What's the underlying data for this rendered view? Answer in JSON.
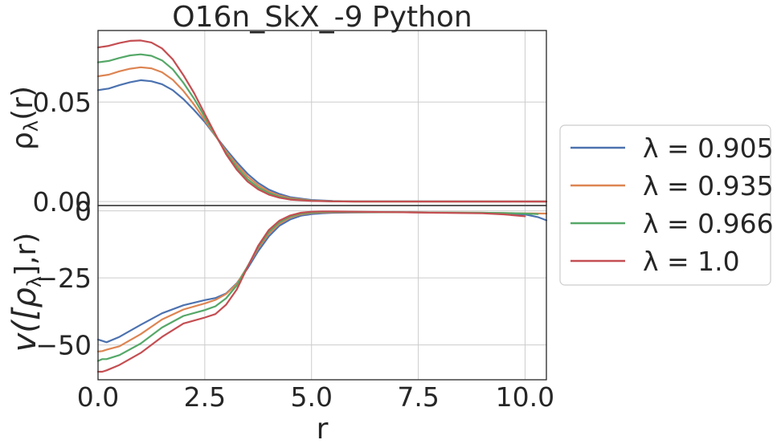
{
  "title": "O16n_SkX_-9 Python",
  "colors": {
    "axis": "#262626",
    "grid": "#cccccc",
    "series": [
      "#4c72b0",
      "#dd8452",
      "#55a868",
      "#c44e52"
    ]
  },
  "chart_data": [
    {
      "type": "line",
      "panel": "top",
      "ylabel_tex": "ρλ(r)",
      "ylabel_main": "ρ",
      "ylabel_sub": "λ",
      "ylabel_tail": "(r)",
      "xlim": [
        0,
        10.5
      ],
      "ylim": [
        -0.002,
        0.086
      ],
      "yticks": [
        0.0,
        0.05
      ],
      "ytick_labels": [
        "0.00",
        "0.05"
      ],
      "grid": true,
      "series": [
        {
          "name": "λ = 0.905",
          "x": [
            0,
            0.25,
            0.5,
            0.75,
            1.0,
            1.25,
            1.5,
            1.75,
            2.0,
            2.25,
            2.5,
            2.75,
            3.0,
            3.25,
            3.5,
            3.75,
            4.0,
            4.25,
            4.5,
            5.0,
            5.5,
            6.0,
            10.5
          ],
          "y": [
            0.056,
            0.0568,
            0.0585,
            0.06,
            0.061,
            0.0605,
            0.059,
            0.056,
            0.0515,
            0.046,
            0.04,
            0.033,
            0.0262,
            0.0198,
            0.014,
            0.0094,
            0.006,
            0.0038,
            0.0022,
            0.0008,
            0.0003,
            0.0001,
            0.0
          ]
        },
        {
          "name": "λ = 0.935",
          "x": [
            0,
            0.25,
            0.5,
            0.75,
            1.0,
            1.25,
            1.5,
            1.75,
            2.0,
            2.25,
            2.5,
            2.75,
            3.0,
            3.25,
            3.5,
            3.75,
            4.0,
            4.25,
            4.5,
            5.0,
            5.5,
            6.0,
            10.5
          ],
          "y": [
            0.063,
            0.0638,
            0.0655,
            0.0668,
            0.0675,
            0.067,
            0.065,
            0.0612,
            0.0556,
            0.0487,
            0.041,
            0.033,
            0.0253,
            0.0185,
            0.0126,
            0.0082,
            0.005,
            0.003,
            0.0017,
            0.0005,
            0.0002,
            0.0,
            0.0
          ]
        },
        {
          "name": "λ = 0.966",
          "x": [
            0,
            0.25,
            0.5,
            0.75,
            1.0,
            1.25,
            1.5,
            1.75,
            2.0,
            2.25,
            2.5,
            2.75,
            3.0,
            3.25,
            3.5,
            3.75,
            4.0,
            4.25,
            4.5,
            5.0,
            5.5,
            6.0,
            10.5
          ],
          "y": [
            0.07,
            0.0707,
            0.0722,
            0.0735,
            0.074,
            0.0733,
            0.071,
            0.0665,
            0.0597,
            0.0517,
            0.0425,
            0.0333,
            0.0245,
            0.0172,
            0.0113,
            0.0071,
            0.0042,
            0.0024,
            0.0013,
            0.0004,
            0.0001,
            0.0,
            0.0
          ]
        },
        {
          "name": "λ = 1.0",
          "x": [
            0,
            0.25,
            0.5,
            0.75,
            1.0,
            1.25,
            1.5,
            1.75,
            2.0,
            2.25,
            2.5,
            2.75,
            3.0,
            3.25,
            3.5,
            3.75,
            4.0,
            4.25,
            4.5,
            5.0,
            5.5,
            6.0,
            10.5
          ],
          "y": [
            0.0775,
            0.0783,
            0.0797,
            0.0808,
            0.081,
            0.08,
            0.077,
            0.0715,
            0.0635,
            0.0545,
            0.044,
            0.0338,
            0.0238,
            0.016,
            0.0101,
            0.0061,
            0.0035,
            0.0019,
            0.001,
            0.0003,
            0.0001,
            0.0,
            0.0
          ]
        }
      ]
    },
    {
      "type": "line",
      "panel": "bottom",
      "ylabel_main": "v([ρ",
      "ylabel_sub": "λ",
      "ylabel_tail": "],r)",
      "xlabel": "r",
      "xlim": [
        0,
        10.5
      ],
      "ylim": [
        -63,
        2
      ],
      "yticks": [
        0,
        -25,
        -50
      ],
      "ytick_labels": [
        "0",
        "−25",
        "−50"
      ],
      "xticks": [
        0,
        2.5,
        5.0,
        7.5,
        10.0
      ],
      "xtick_labels": [
        "0.0",
        "2.5",
        "5.0",
        "7.5",
        "10.0"
      ],
      "grid": true,
      "series": [
        {
          "name": "λ = 0.905",
          "x": [
            0.0,
            0.1,
            0.2,
            0.5,
            1.0,
            1.5,
            2.0,
            2.5,
            2.75,
            3.0,
            3.25,
            3.5,
            3.75,
            4.0,
            4.25,
            4.5,
            4.75,
            5.0,
            5.25,
            5.5,
            6.0,
            7.0,
            8.0,
            9.0,
            9.5,
            10.0,
            10.3,
            10.5
          ],
          "y": [
            -48,
            -48.5,
            -49,
            -47,
            -42.5,
            -38.2,
            -35.2,
            -33.3,
            -32.5,
            -30.8,
            -27,
            -21.5,
            -15,
            -9.5,
            -5.5,
            -3.2,
            -1.8,
            -1.2,
            -0.9,
            -0.7,
            -0.6,
            -0.5,
            -0.6,
            -0.8,
            -1.1,
            -1.3,
            -2.3,
            -3.5
          ]
        },
        {
          "name": "λ = 0.935",
          "x": [
            0.0,
            0.1,
            0.2,
            0.5,
            1.0,
            1.5,
            2.0,
            2.5,
            2.75,
            3.0,
            3.25,
            3.5,
            3.75,
            4.0,
            4.25,
            4.5,
            4.75,
            5.0,
            5.25,
            5.5,
            6.0,
            7.0,
            8.0,
            9.0,
            9.5,
            10.0,
            10.5
          ],
          "y": [
            -52.5,
            -52.3,
            -51.8,
            -50.5,
            -46,
            -40.5,
            -36.8,
            -34.5,
            -33.2,
            -31,
            -27.2,
            -20.8,
            -14,
            -8.5,
            -4.7,
            -2.5,
            -1.3,
            -0.8,
            -0.6,
            -0.5,
            -0.5,
            -0.5,
            -0.6,
            -0.7,
            -0.8,
            -0.9,
            -1.0
          ]
        },
        {
          "name": "λ = 0.966",
          "x": [
            0.0,
            0.1,
            0.2,
            0.5,
            1.0,
            1.5,
            2.0,
            2.5,
            2.75,
            3.0,
            3.25,
            3.5,
            3.75,
            4.0,
            4.25,
            4.5,
            4.75,
            5.0,
            5.25,
            5.5,
            6.0,
            7.0,
            8.0,
            9.0,
            9.5,
            10.0,
            10.3
          ],
          "y": [
            -56,
            -55.3,
            -55.3,
            -53.8,
            -49.5,
            -43.5,
            -39.2,
            -37,
            -35.6,
            -32.6,
            -27.8,
            -20.8,
            -13.5,
            -7.8,
            -4.2,
            -2.1,
            -1.0,
            -0.6,
            -0.4,
            -0.3,
            -0.4,
            -0.5,
            -0.6,
            -0.7,
            -0.8,
            -1.0,
            -1.2
          ]
        },
        {
          "name": "λ = 1.0",
          "x": [
            0.0,
            0.1,
            0.2,
            0.5,
            1.0,
            1.5,
            2.0,
            2.5,
            2.75,
            3.0,
            3.25,
            3.5,
            3.75,
            4.0,
            4.25,
            4.5,
            4.75,
            5.0,
            5.25,
            5.5,
            6.0,
            7.0,
            8.0,
            9.0,
            9.5,
            10.0
          ],
          "y": [
            -60,
            -60,
            -59.5,
            -57.5,
            -53,
            -47,
            -42,
            -39.8,
            -38.5,
            -35,
            -29.3,
            -21,
            -13,
            -7.1,
            -3.6,
            -1.7,
            -0.7,
            -0.3,
            -0.2,
            -0.2,
            -0.3,
            -0.5,
            -0.7,
            -0.9,
            -1.3,
            -2.0
          ]
        }
      ]
    }
  ],
  "legend": {
    "placement": "center-right",
    "entries": [
      {
        "label": "λ = 0.905"
      },
      {
        "label": "λ = 0.935"
      },
      {
        "label": "λ = 0.966"
      },
      {
        "label": "λ = 1.0"
      }
    ]
  }
}
